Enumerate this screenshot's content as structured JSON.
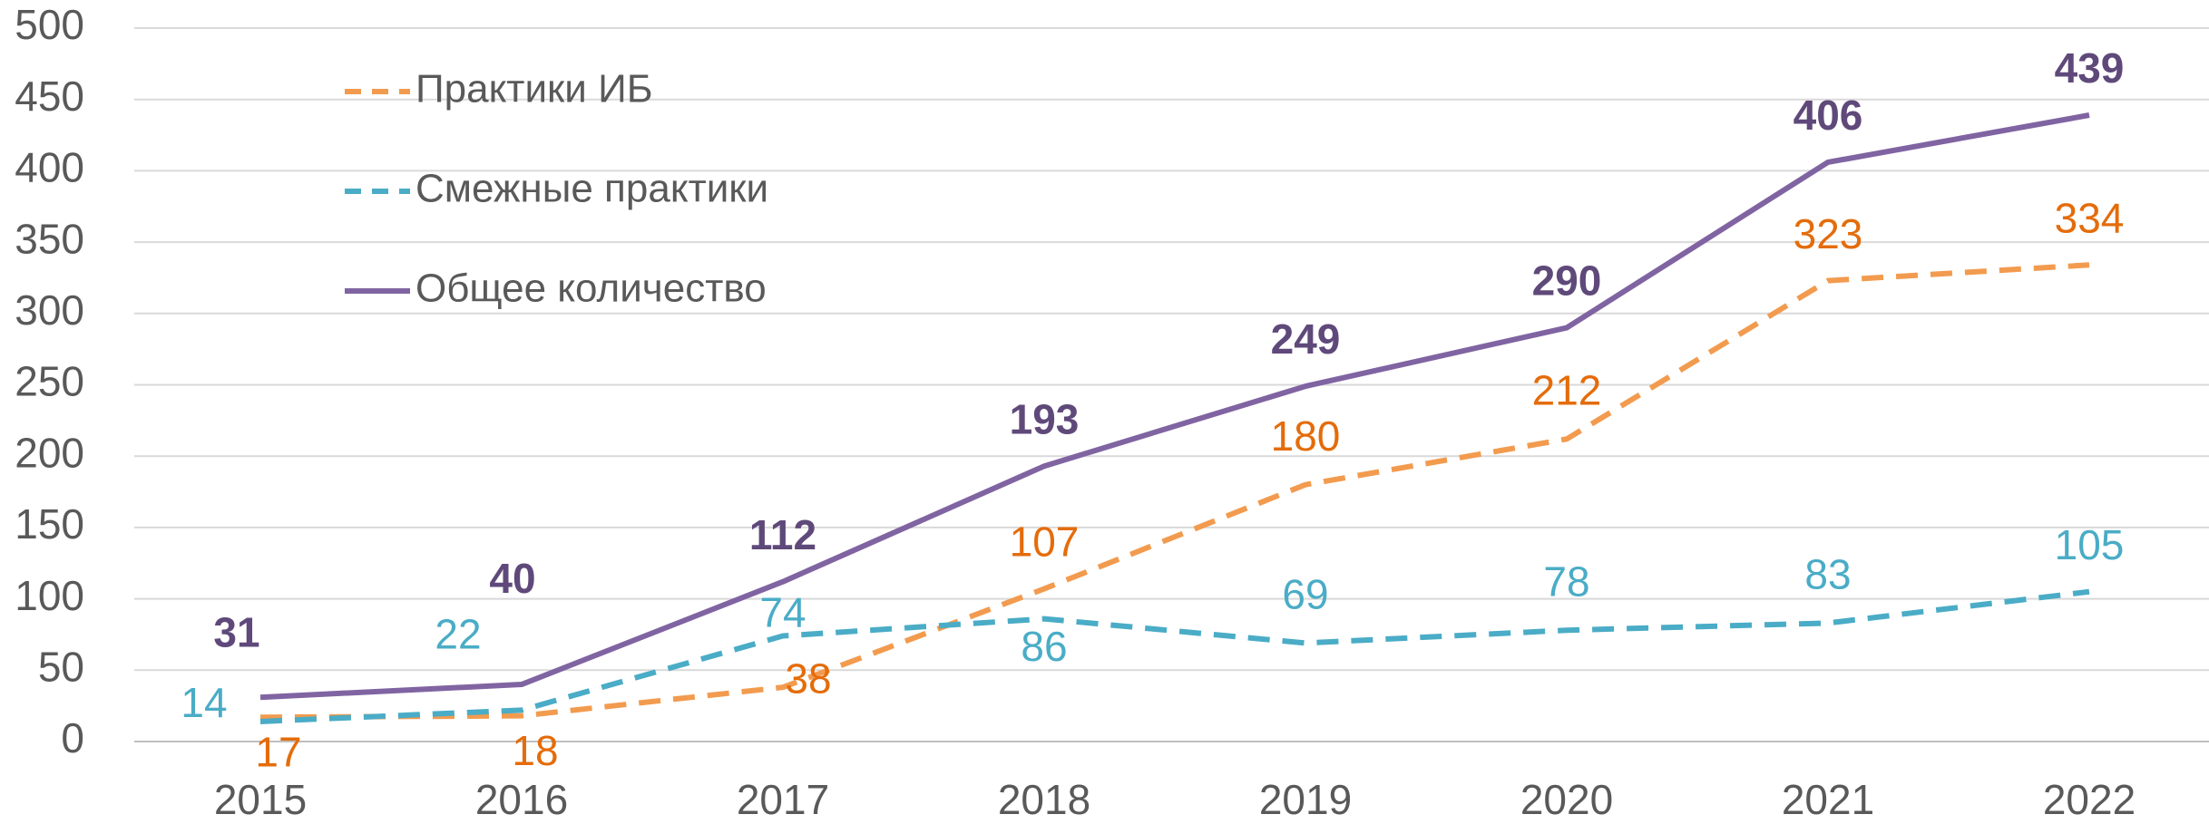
{
  "chart_data": {
    "type": "line",
    "categories": [
      "2015",
      "2016",
      "2017",
      "2018",
      "2019",
      "2020",
      "2021",
      "2022"
    ],
    "series": [
      {
        "name": "Практики ИБ",
        "color": "#f29b4f",
        "label_color": "#e46c0a",
        "dash": true,
        "values": [
          17,
          18,
          38,
          107,
          180,
          212,
          323,
          334
        ]
      },
      {
        "name": "Смежные практики",
        "color": "#4aacc6",
        "label_color": "#4aacc6",
        "dash": true,
        "values": [
          14,
          22,
          74,
          86,
          69,
          78,
          83,
          105
        ]
      },
      {
        "name": "Общее количество",
        "color": "#8064a2",
        "label_color": "#5f497a",
        "dash": false,
        "bold_labels": true,
        "values": [
          31,
          40,
          112,
          193,
          249,
          290,
          406,
          439
        ]
      }
    ],
    "ylim": [
      0,
      500
    ],
    "yticks": [
      0,
      50,
      100,
      150,
      200,
      250,
      300,
      350,
      400,
      450,
      500
    ],
    "grid": true,
    "legend": "upper left"
  }
}
